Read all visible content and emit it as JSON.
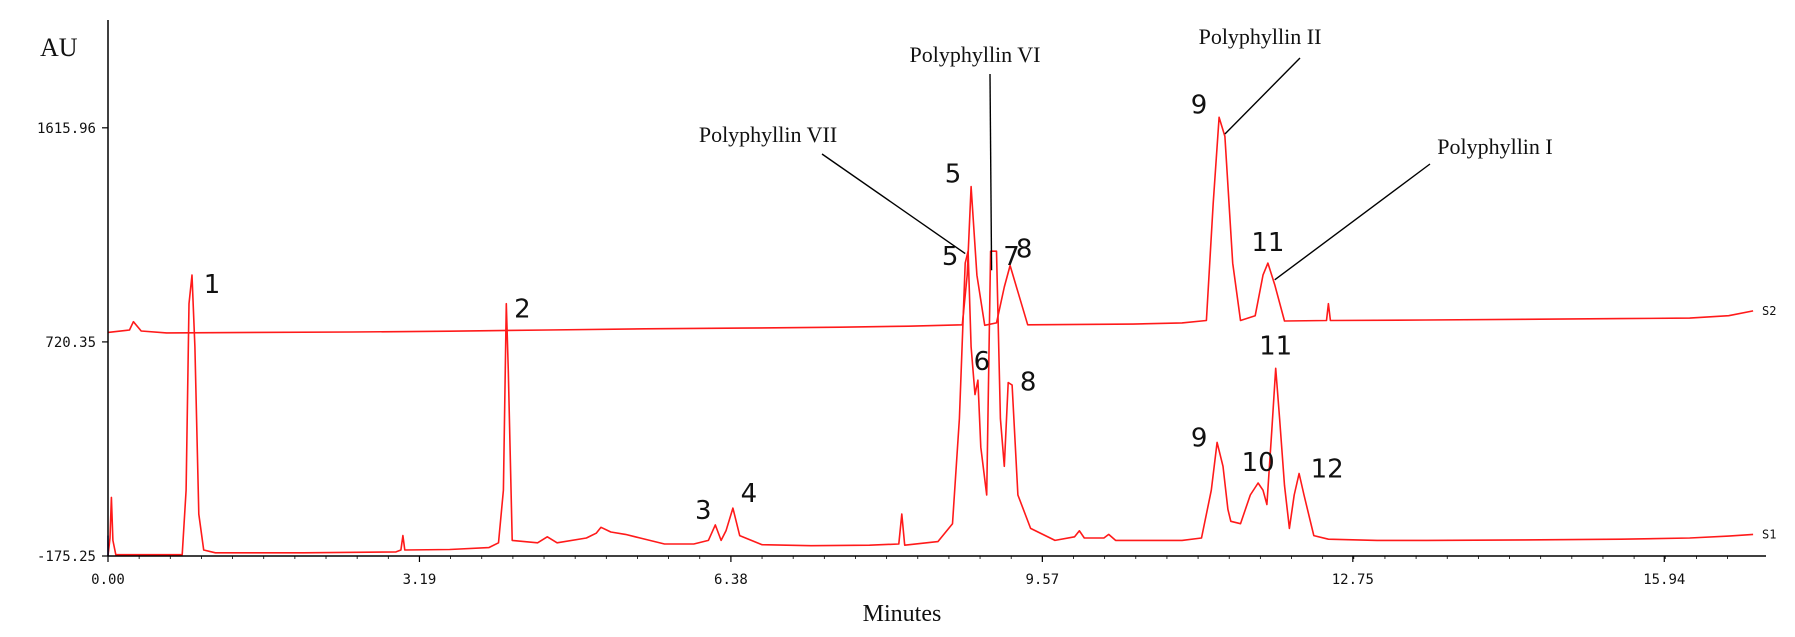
{
  "colors": {
    "trace": "#ff1a1a",
    "axis": "#000000",
    "text": "#111111",
    "blip_blue": "#2b3bd6"
  },
  "chart_data": {
    "type": "line",
    "title": "",
    "xlabel": "Minutes",
    "ylabel": "AU",
    "xlim": [
      0.0,
      16.9
    ],
    "x_ticks": [
      {
        "value": 0.0,
        "label": "0.00"
      },
      {
        "value": 3.19,
        "label": "3.19"
      },
      {
        "value": 6.38,
        "label": "6.38"
      },
      {
        "value": 9.57,
        "label": "9.57"
      },
      {
        "value": 12.75,
        "label": "12.75"
      },
      {
        "value": 15.94,
        "label": "15.94"
      }
    ],
    "y_ticks": [
      {
        "value": 1615.96,
        "label": "1615.96"
      },
      {
        "value": 720.35,
        "label": "720.35"
      },
      {
        "value": -175.25,
        "label": "-175.25"
      }
    ],
    "ylim": [
      -175.25,
      1816.0
    ],
    "grid": false,
    "series": [
      {
        "name": "S2",
        "baseline_start": 760,
        "baseline_end": 805,
        "points": [
          [
            0.0,
            760
          ],
          [
            0.22,
            770
          ],
          [
            0.26,
            805
          ],
          [
            0.34,
            766
          ],
          [
            0.6,
            758
          ],
          [
            1.5,
            760
          ],
          [
            2.5,
            762
          ],
          [
            3.5,
            765
          ],
          [
            4.5,
            770
          ],
          [
            5.5,
            775
          ],
          [
            6.5,
            778
          ],
          [
            7.5,
            782
          ],
          [
            8.2,
            786
          ],
          [
            8.75,
            792
          ],
          [
            8.8,
            1000
          ],
          [
            8.84,
            1370
          ],
          [
            8.9,
            1000
          ],
          [
            8.98,
            790
          ],
          [
            9.1,
            800
          ],
          [
            9.18,
            950
          ],
          [
            9.24,
            1040
          ],
          [
            9.32,
            930
          ],
          [
            9.42,
            792
          ],
          [
            10.5,
            795
          ],
          [
            11.0,
            800
          ],
          [
            11.25,
            810
          ],
          [
            11.32,
            1300
          ],
          [
            11.38,
            1660
          ],
          [
            11.44,
            1580
          ],
          [
            11.52,
            1050
          ],
          [
            11.6,
            810
          ],
          [
            11.75,
            830
          ],
          [
            11.83,
            1000
          ],
          [
            11.88,
            1050
          ],
          [
            11.95,
            960
          ],
          [
            12.05,
            808
          ],
          [
            12.48,
            810
          ],
          [
            12.5,
            880
          ],
          [
            12.52,
            810
          ],
          [
            13.5,
            812
          ],
          [
            14.5,
            815
          ],
          [
            15.5,
            818
          ],
          [
            16.2,
            820
          ],
          [
            16.6,
            830
          ],
          [
            16.85,
            850
          ]
        ]
      },
      {
        "name": "S1",
        "points": [
          [
            0.0,
            -175
          ],
          [
            0.02,
            -100
          ],
          [
            0.035,
            70
          ],
          [
            0.05,
            -110
          ],
          [
            0.08,
            -170
          ],
          [
            0.76,
            -170
          ],
          [
            0.8,
            100
          ],
          [
            0.83,
            880
          ],
          [
            0.86,
            1000
          ],
          [
            0.89,
            700
          ],
          [
            0.93,
            0
          ],
          [
            0.98,
            -150
          ],
          [
            1.1,
            -162
          ],
          [
            2.0,
            -162
          ],
          [
            2.95,
            -158
          ],
          [
            3.0,
            -150
          ],
          [
            3.02,
            -90
          ],
          [
            3.04,
            -150
          ],
          [
            3.5,
            -148
          ],
          [
            3.9,
            -140
          ],
          [
            4.0,
            -120
          ],
          [
            4.05,
            100
          ],
          [
            4.08,
            880
          ],
          [
            4.1,
            600
          ],
          [
            4.14,
            -110
          ],
          [
            4.4,
            -120
          ],
          [
            4.5,
            -95
          ],
          [
            4.6,
            -120
          ],
          [
            4.9,
            -100
          ],
          [
            5.0,
            -80
          ],
          [
            5.05,
            -55
          ],
          [
            5.15,
            -75
          ],
          [
            5.3,
            -85
          ],
          [
            5.45,
            -100
          ],
          [
            5.7,
            -125
          ],
          [
            6.0,
            -125
          ],
          [
            6.15,
            -110
          ],
          [
            6.22,
            -45
          ],
          [
            6.28,
            -110
          ],
          [
            6.33,
            -70
          ],
          [
            6.4,
            25
          ],
          [
            6.47,
            -90
          ],
          [
            6.7,
            -128
          ],
          [
            7.2,
            -132
          ],
          [
            7.8,
            -130
          ],
          [
            8.1,
            -125
          ],
          [
            8.13,
            0
          ],
          [
            8.16,
            -130
          ],
          [
            8.5,
            -115
          ],
          [
            8.65,
            -40
          ],
          [
            8.72,
            400
          ],
          [
            8.78,
            1050
          ],
          [
            8.81,
            1100
          ],
          [
            8.84,
            700
          ],
          [
            8.88,
            500
          ],
          [
            8.91,
            560
          ],
          [
            8.94,
            280
          ],
          [
            9.0,
            80
          ],
          [
            9.04,
            1100
          ],
          [
            9.1,
            1100
          ],
          [
            9.14,
            400
          ],
          [
            9.18,
            200
          ],
          [
            9.22,
            550
          ],
          [
            9.26,
            540
          ],
          [
            9.32,
            80
          ],
          [
            9.45,
            -60
          ],
          [
            9.7,
            -110
          ],
          [
            9.9,
            -95
          ],
          [
            9.95,
            -70
          ],
          [
            10.0,
            -100
          ],
          [
            10.2,
            -100
          ],
          [
            10.25,
            -85
          ],
          [
            10.32,
            -110
          ],
          [
            10.6,
            -110
          ],
          [
            11.0,
            -110
          ],
          [
            11.2,
            -100
          ],
          [
            11.3,
            100
          ],
          [
            11.36,
            300
          ],
          [
            11.42,
            200
          ],
          [
            11.47,
            20
          ],
          [
            11.5,
            -30
          ],
          [
            11.6,
            -40
          ],
          [
            11.7,
            80
          ],
          [
            11.78,
            130
          ],
          [
            11.83,
            100
          ],
          [
            11.87,
            40
          ],
          [
            11.92,
            350
          ],
          [
            11.96,
            610
          ],
          [
            12.0,
            400
          ],
          [
            12.05,
            120
          ],
          [
            12.1,
            -60
          ],
          [
            12.15,
            80
          ],
          [
            12.2,
            170
          ],
          [
            12.25,
            80
          ],
          [
            12.35,
            -90
          ],
          [
            12.5,
            -105
          ],
          [
            13.0,
            -110
          ],
          [
            13.5,
            -110
          ],
          [
            14.5,
            -108
          ],
          [
            15.5,
            -105
          ],
          [
            16.2,
            -100
          ],
          [
            16.6,
            -92
          ],
          [
            16.85,
            -85
          ]
        ]
      }
    ],
    "peak_labels": [
      {
        "series": "S2",
        "text": "5",
        "x": 8.84,
        "y": 1370
      },
      {
        "series": "S2",
        "text": "8",
        "x": 9.24,
        "y": 1040
      },
      {
        "series": "S2",
        "text": "9",
        "x": 11.38,
        "y": 1660
      },
      {
        "series": "S2",
        "text": "11",
        "x": 11.88,
        "y": 1050
      },
      {
        "series": "S1",
        "text": "1",
        "x": 0.86,
        "y": 1000
      },
      {
        "series": "S1",
        "text": "2",
        "x": 4.08,
        "y": 880
      },
      {
        "series": "S1",
        "text": "3",
        "x": 6.22,
        "y": -45
      },
      {
        "series": "S1",
        "text": "4",
        "x": 6.4,
        "y": 25
      },
      {
        "series": "S1",
        "text": "5",
        "x": 8.81,
        "y": 1100
      },
      {
        "series": "S1",
        "text": "6",
        "x": 8.91,
        "y": 560
      },
      {
        "series": "S1",
        "text": "7",
        "x": 9.07,
        "y": 1100
      },
      {
        "series": "S1",
        "text": "8",
        "x": 9.24,
        "y": 550
      },
      {
        "series": "S1",
        "text": "9",
        "x": 11.36,
        "y": 300
      },
      {
        "series": "S1",
        "text": "10",
        "x": 11.78,
        "y": 130
      },
      {
        "series": "S1",
        "text": "11",
        "x": 11.96,
        "y": 610
      },
      {
        "series": "S1",
        "text": "12",
        "x": 12.2,
        "y": 170
      }
    ],
    "annotations": [
      {
        "text": "Polyphyllin VII",
        "target_x": 8.78,
        "target_y": 1090
      },
      {
        "text": "Polyphyllin VI",
        "target_x": 9.05,
        "target_y": 1020
      },
      {
        "text": "Polyphyllin II",
        "target_x": 11.44,
        "target_y": 1590
      },
      {
        "text": "Polyphyllin I",
        "target_x": 11.95,
        "target_y": 980
      }
    ],
    "trace_labels": [
      {
        "text": "S2",
        "y": 850
      },
      {
        "text": "S1",
        "y": -85
      }
    ]
  }
}
